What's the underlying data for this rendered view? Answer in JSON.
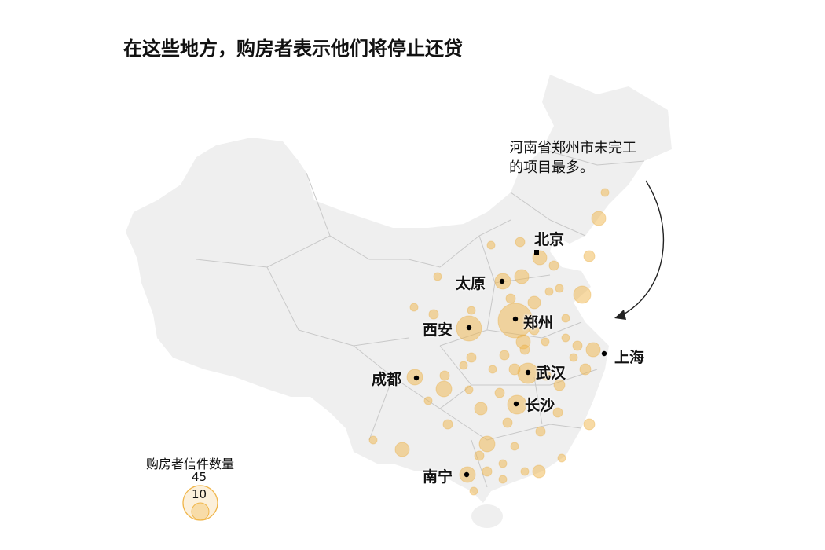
{
  "title": "在这些地方，购房者表示他们将停止还贷",
  "annotation": {
    "line1": "河南省郑州市未完工",
    "line2": "的项目最多。"
  },
  "cities": {
    "beijing": "北京",
    "taiyuan": "太原",
    "zhengzhou": "郑州",
    "xian": "西安",
    "shanghai": "上海",
    "wuhan": "武汉",
    "chengdu": "成都",
    "changsha": "长沙",
    "nanning": "南宁"
  },
  "legend": {
    "title": "购房者信件数量",
    "large_value": "45",
    "small_value": "10"
  },
  "colors": {
    "land": "#efefef",
    "border": "#c8c8c8",
    "bubble_fill": "#f0b64b",
    "bubble_stroke": "#e9a83a",
    "city_dot": "#000000"
  }
}
